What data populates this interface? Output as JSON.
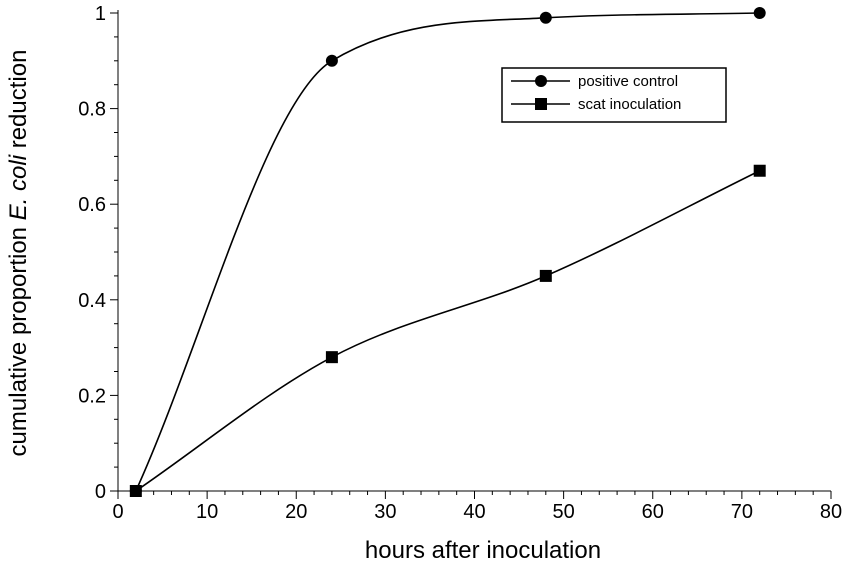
{
  "chart_data": {
    "type": "line",
    "title": "",
    "xlabel": "hours after inoculation",
    "ylabel": {
      "before": "cumulative proportion ",
      "italic": "E. coli",
      "after": " reduction"
    },
    "xlim": [
      0,
      80
    ],
    "ylim": [
      0,
      1
    ],
    "x_ticks": [
      "0",
      "10",
      "20",
      "30",
      "40",
      "50",
      "60",
      "70",
      "80"
    ],
    "x_tick_values": [
      0,
      10,
      20,
      30,
      40,
      50,
      60,
      70,
      80
    ],
    "y_ticks": [
      "0",
      "0.2",
      "0.4",
      "0.6",
      "0.8",
      "1"
    ],
    "y_tick_values": [
      0,
      0.2,
      0.4,
      0.6,
      0.8,
      1
    ],
    "grid": false,
    "legend_position": "top-right",
    "series": [
      {
        "name": "positive control",
        "marker": "circle",
        "x": [
          2,
          24,
          48,
          72
        ],
        "y": [
          0,
          0.9,
          0.99,
          1.0
        ]
      },
      {
        "name": "scat inoculation",
        "marker": "square",
        "x": [
          2,
          24,
          48,
          72
        ],
        "y": [
          0,
          0.28,
          0.45,
          0.67
        ]
      }
    ],
    "colors": {
      "line": "#000000",
      "marker": "#000000",
      "background": "#ffffff"
    }
  }
}
